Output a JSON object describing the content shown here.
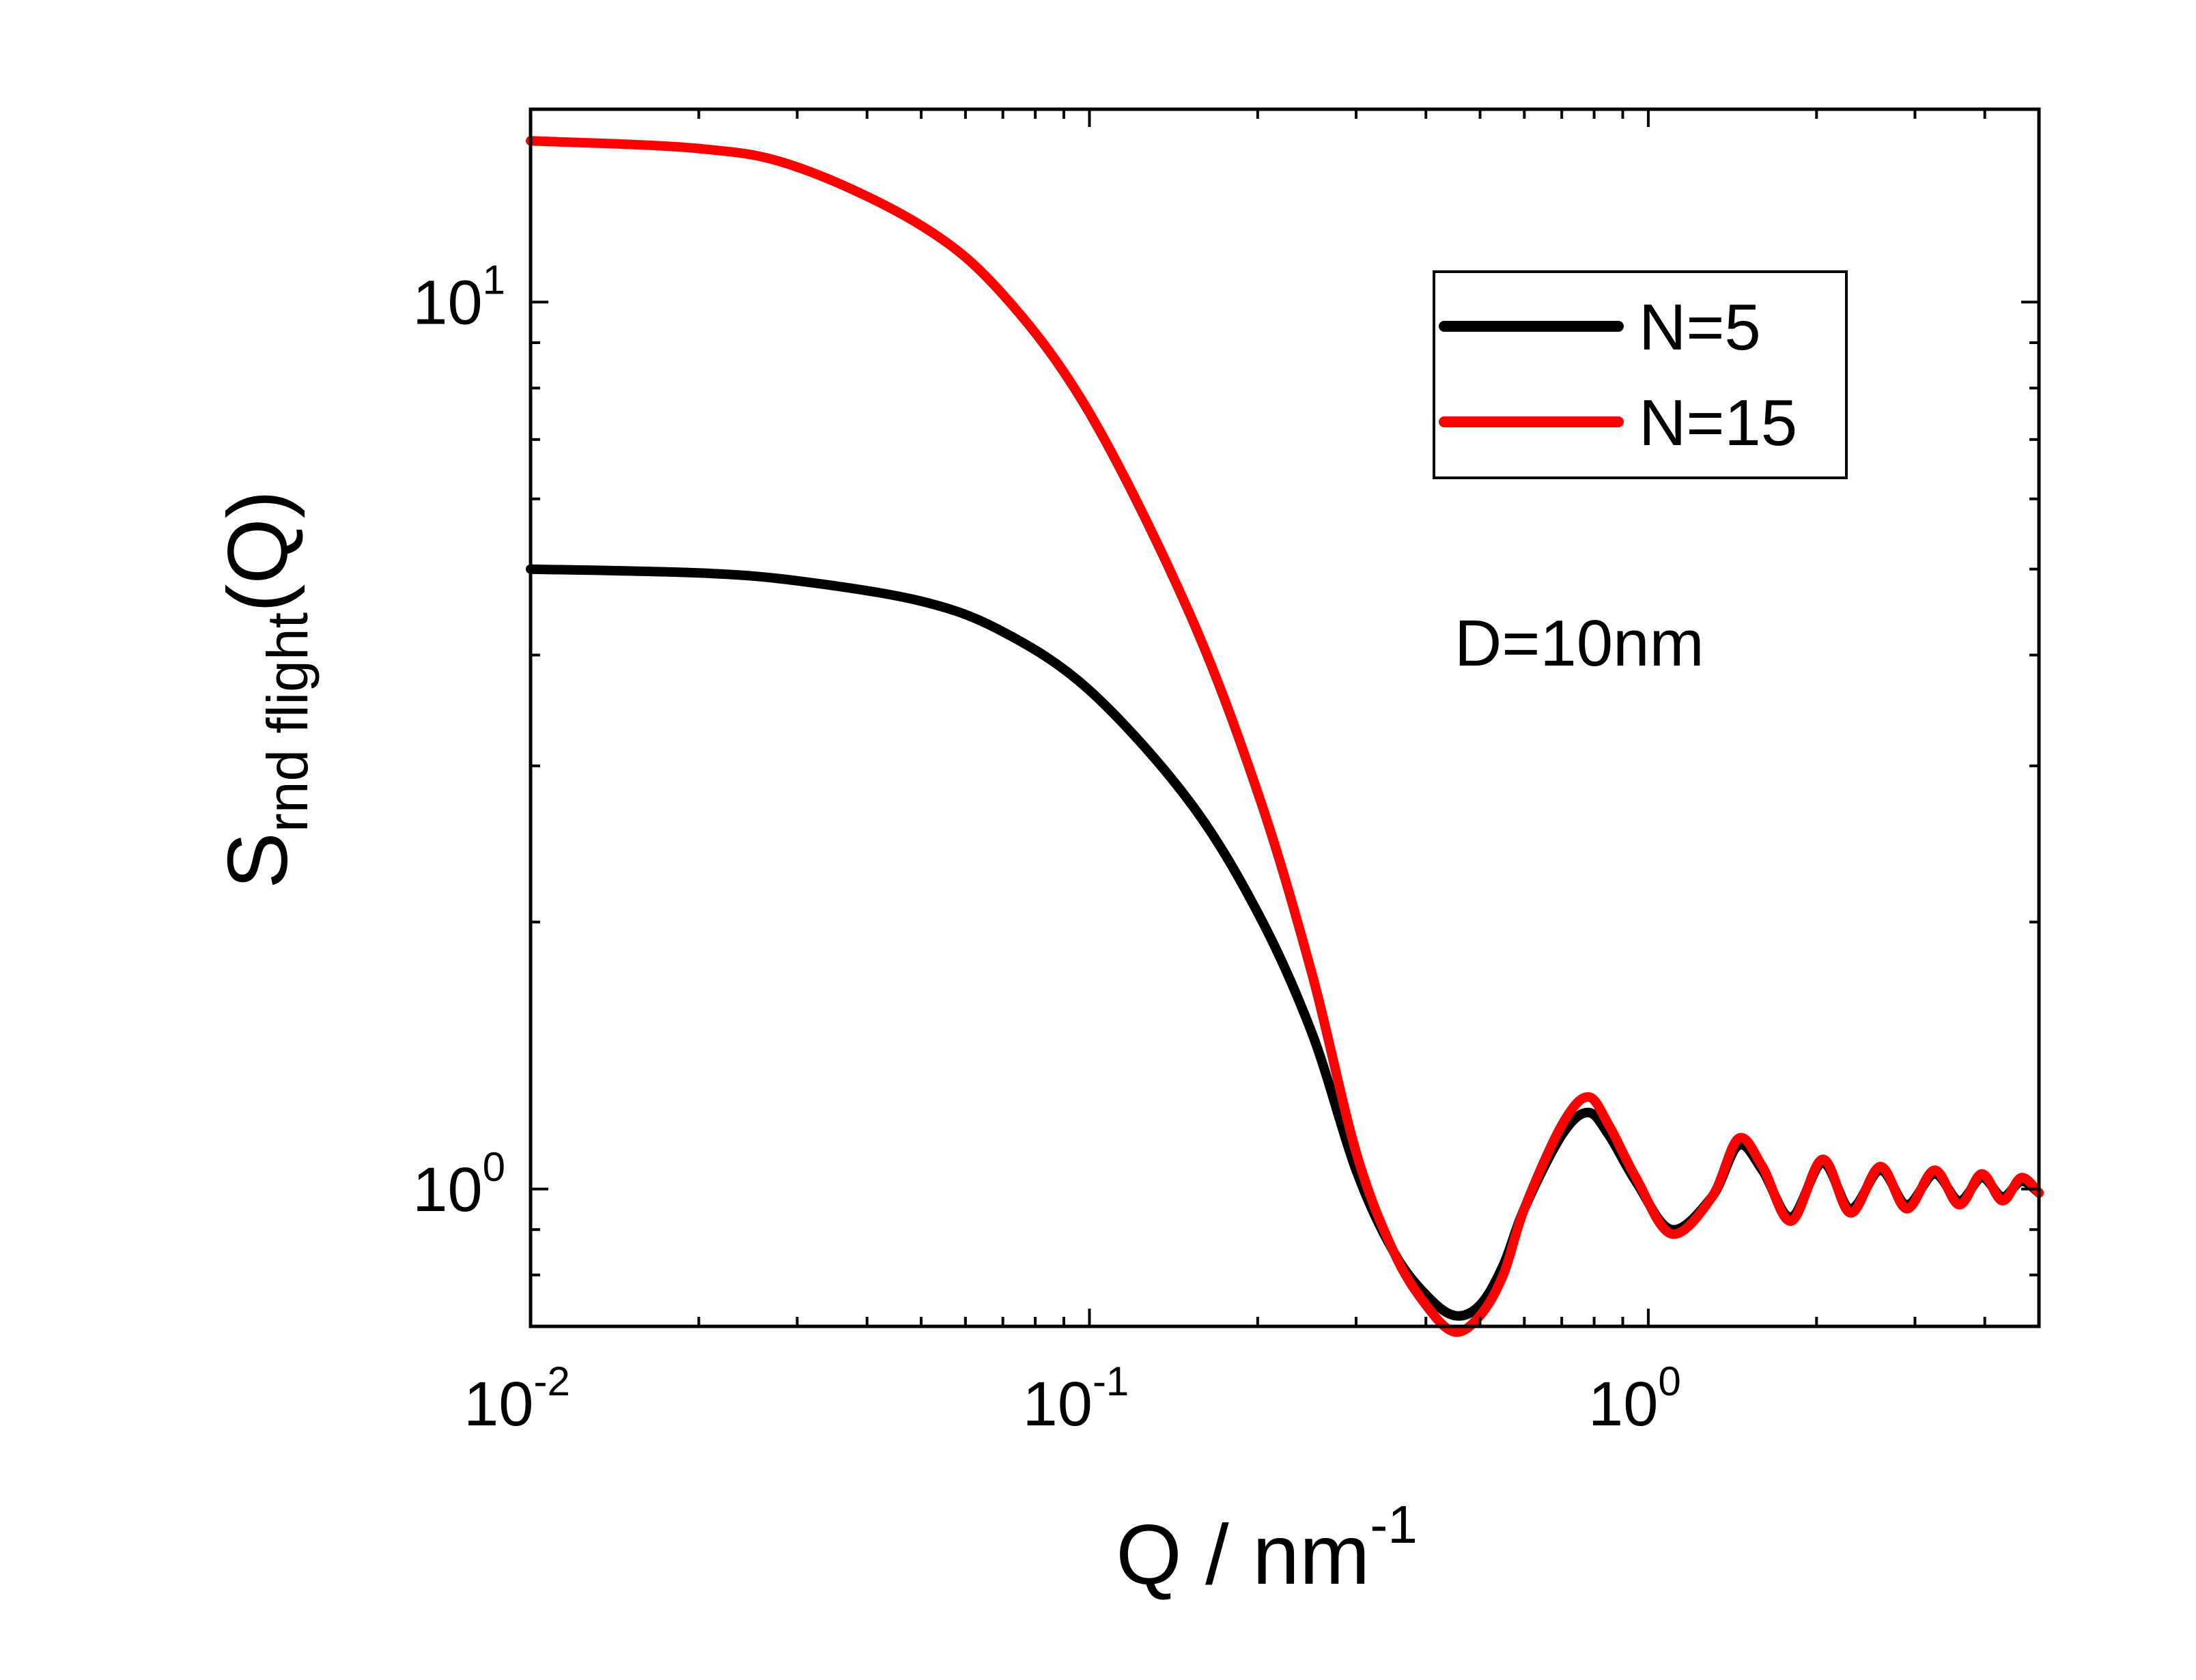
{
  "chart_data": {
    "type": "line",
    "xscale": "log",
    "yscale": "log",
    "xlim": [
      0.01,
      5
    ],
    "ylim": [
      0.7,
      16.5
    ],
    "xlabel": {
      "main": "Q / nm",
      "sup": "-1"
    },
    "ylabel": {
      "main": "S",
      "sub": "rnd flight",
      "tail": "(Q)"
    },
    "xticks": [
      {
        "value": 0.01,
        "base": "10",
        "exp": "-2"
      },
      {
        "value": 0.1,
        "base": "10",
        "exp": "-1"
      },
      {
        "value": 1,
        "base": "10",
        "exp": "0"
      }
    ],
    "yticks": [
      {
        "value": 1,
        "base": "10",
        "exp": "0"
      },
      {
        "value": 10,
        "base": "10",
        "exp": "1"
      }
    ],
    "legend": {
      "position": "top-right"
    },
    "annotation": "D=10nm",
    "series": [
      {
        "name": "N=5",
        "color": "#000000",
        "x": [
          0.01,
          0.02,
          0.03,
          0.05,
          0.07,
          0.1,
          0.15,
          0.2,
          0.25,
          0.3,
          0.35,
          0.4,
          0.45,
          0.5,
          0.55,
          0.6,
          0.7,
          0.78,
          0.85,
          0.95,
          1.1,
          1.3,
          1.45,
          1.6,
          1.8,
          2.05,
          2.3,
          2.6,
          2.9,
          3.25,
          3.6,
          3.95,
          4.3,
          4.65,
          5.0
        ],
        "y": [
          5.0,
          4.95,
          4.85,
          4.6,
          4.25,
          3.65,
          2.75,
          2.05,
          1.5,
          1.05,
          0.85,
          0.76,
          0.72,
          0.74,
          0.82,
          0.95,
          1.15,
          1.22,
          1.15,
          1.02,
          0.9,
          0.98,
          1.12,
          1.05,
          0.93,
          1.07,
          0.95,
          1.05,
          0.96,
          1.04,
          0.97,
          1.03,
          0.98,
          1.02,
          0.99
        ]
      },
      {
        "name": "N=15",
        "color": "#ff0000",
        "x": [
          0.01,
          0.02,
          0.03,
          0.05,
          0.07,
          0.1,
          0.15,
          0.2,
          0.25,
          0.3,
          0.35,
          0.4,
          0.45,
          0.5,
          0.55,
          0.6,
          0.7,
          0.78,
          0.85,
          0.95,
          1.1,
          1.3,
          1.45,
          1.6,
          1.8,
          2.05,
          2.3,
          2.6,
          2.9,
          3.25,
          3.6,
          3.95,
          4.3,
          4.65,
          5.0
        ],
        "y": [
          15.2,
          14.9,
          14.2,
          12.2,
          10.2,
          7.5,
          4.5,
          2.8,
          1.75,
          1.1,
          0.85,
          0.74,
          0.69,
          0.72,
          0.8,
          0.95,
          1.18,
          1.27,
          1.18,
          1.03,
          0.89,
          0.98,
          1.14,
          1.06,
          0.92,
          1.08,
          0.94,
          1.06,
          0.95,
          1.05,
          0.96,
          1.04,
          0.97,
          1.03,
          0.99
        ]
      }
    ]
  }
}
